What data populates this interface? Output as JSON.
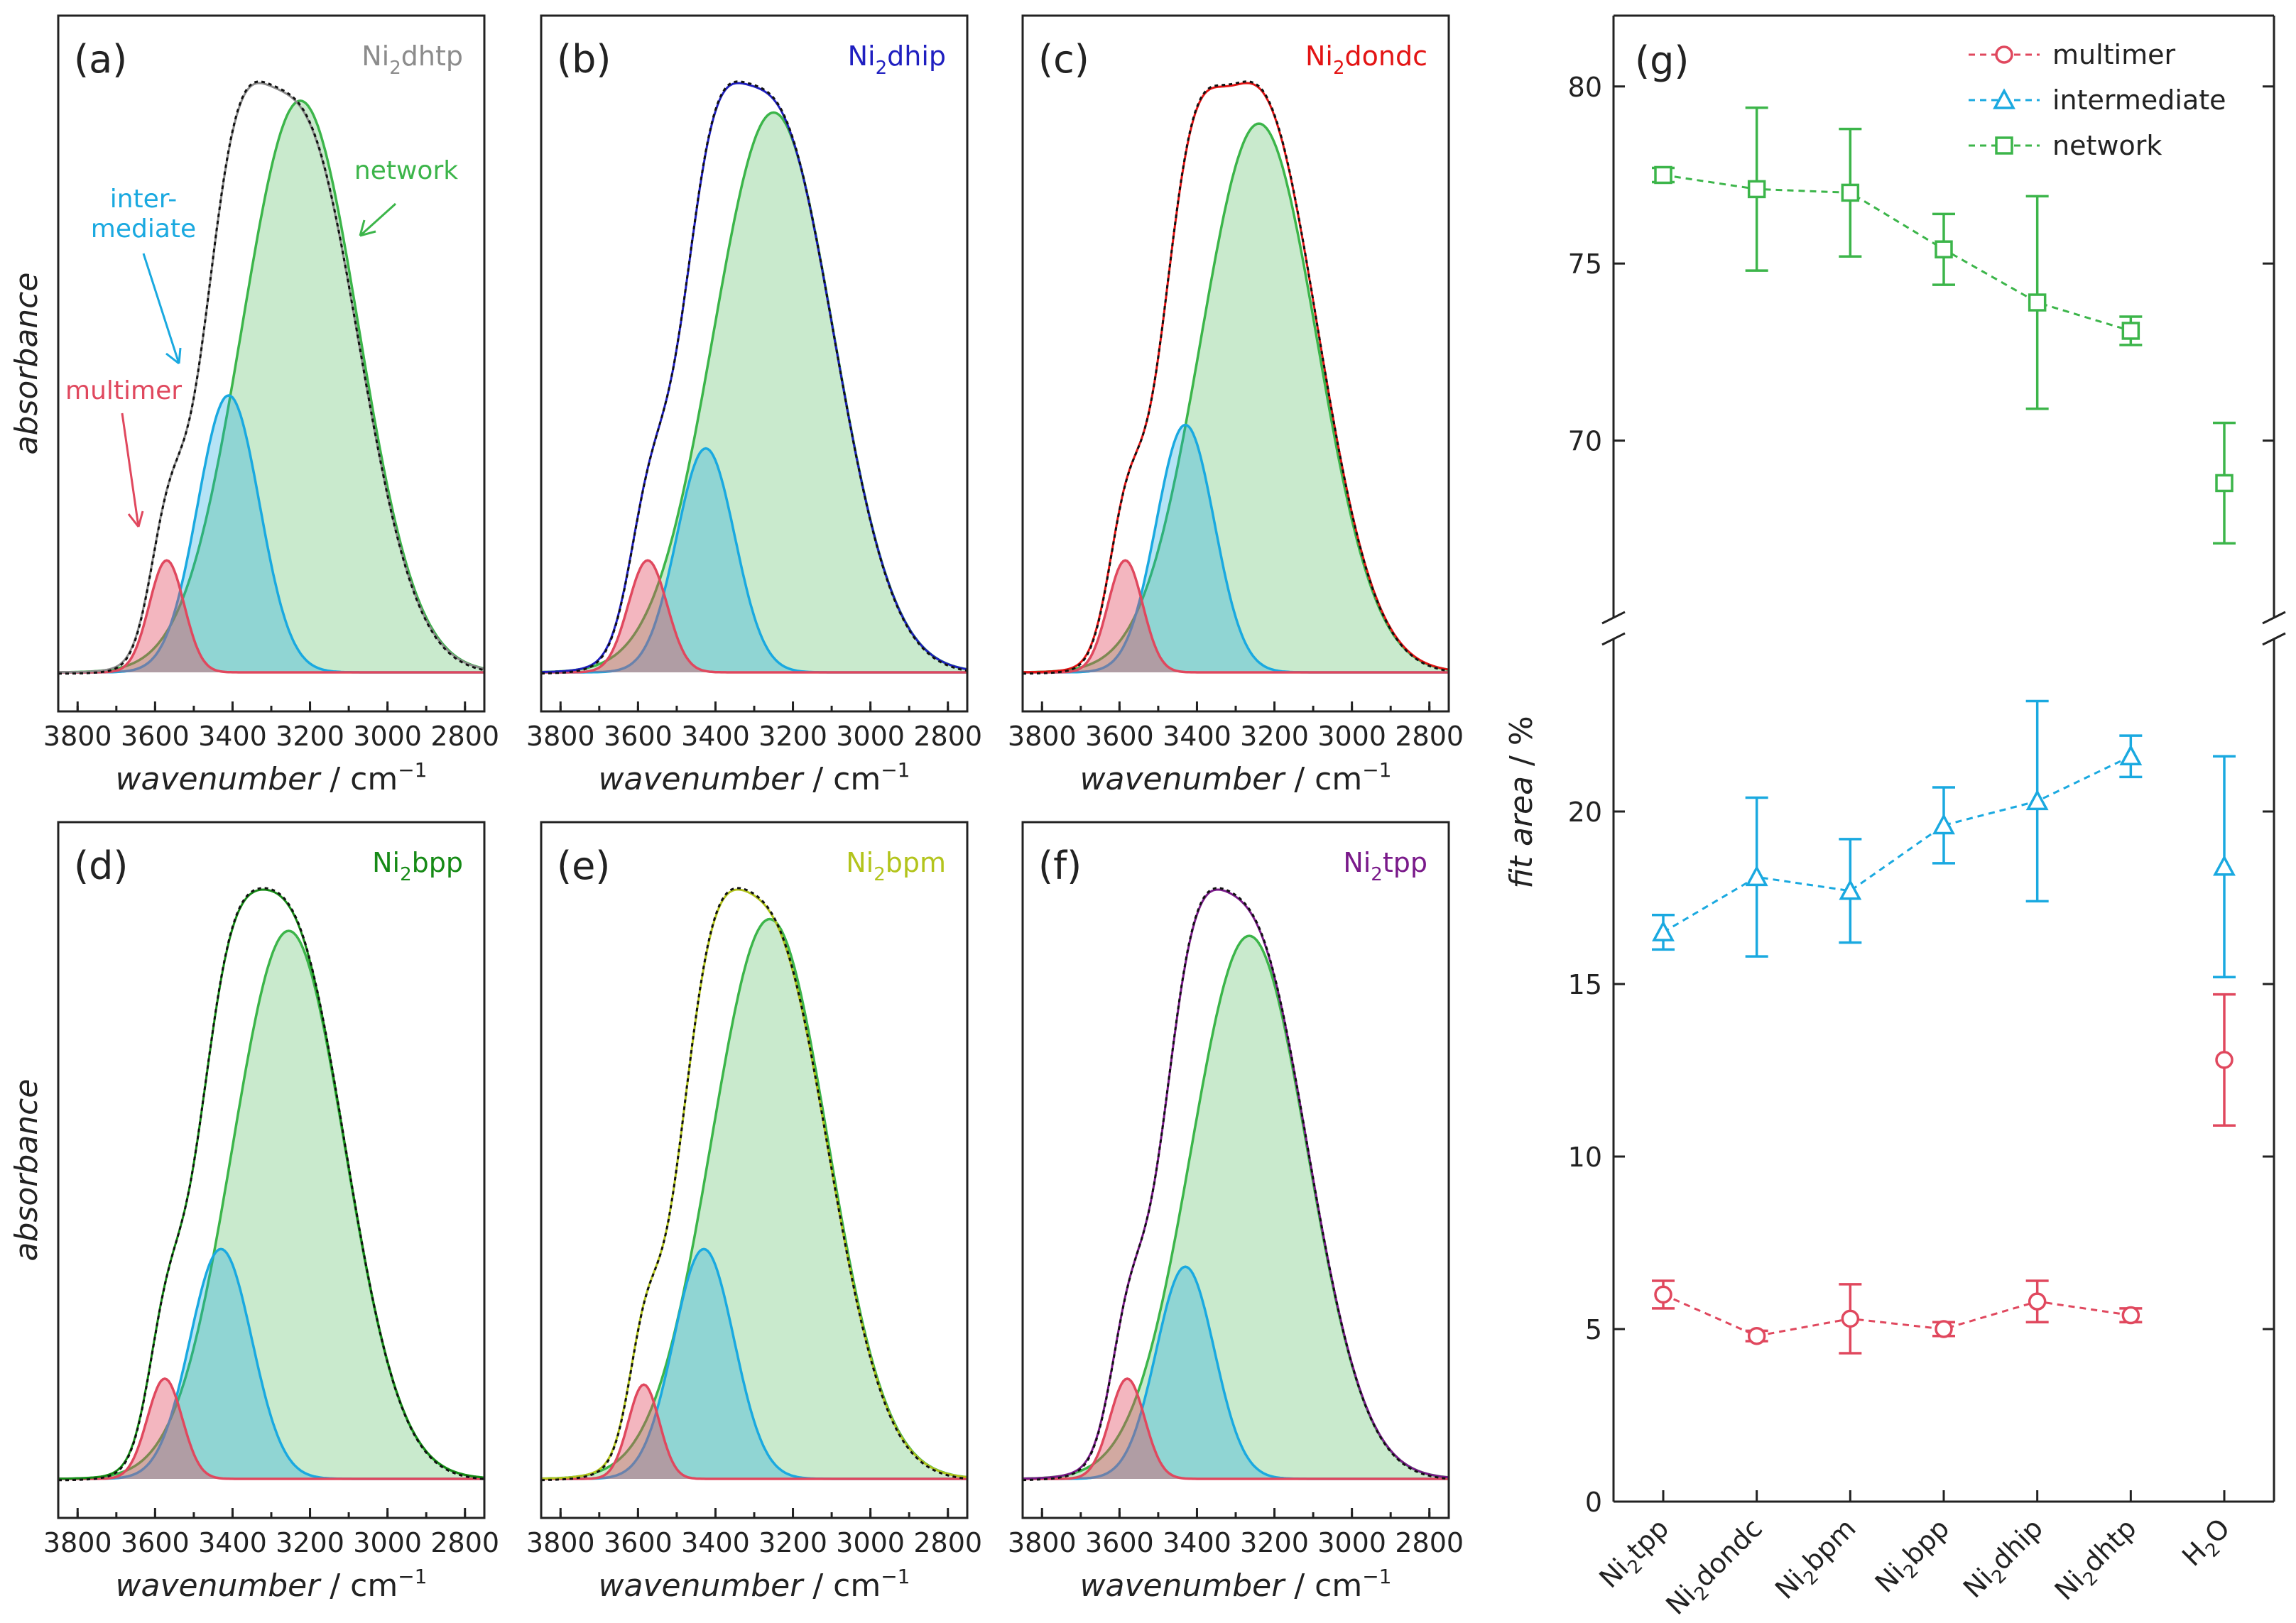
{
  "colors": {
    "multimer": "#e0485e",
    "intermediate": "#1aa9e0",
    "network": "#3cb54a",
    "axis": "#222222",
    "fit": "#111111"
  },
  "spectra": {
    "xlabel_italic": "wavenumber",
    "xlabel_unit": " / cm",
    "xlabel_exp": "−1",
    "ylabel": "absorbance",
    "ticks": [
      "3800",
      "3600",
      "3400",
      "3200",
      "3000",
      "2800"
    ],
    "annotations": {
      "network": "network",
      "inter1": "inter-",
      "inter2": "mediate",
      "multimer": "multimer"
    },
    "panels": [
      {
        "label": "(a)",
        "name_pre": "Ni",
        "name_sub": "2",
        "name_post": "dhtp",
        "name_color": "#8c8c8c"
      },
      {
        "label": "(b)",
        "name_pre": "Ni",
        "name_sub": "2",
        "name_post": "dhip",
        "name_color": "#1f1fc0"
      },
      {
        "label": "(c)",
        "name_pre": "Ni",
        "name_sub": "2",
        "name_post": "dondc",
        "name_color": "#e31414"
      },
      {
        "label": "(d)",
        "name_pre": "Ni",
        "name_sub": "2",
        "name_post": "bpp",
        "name_color": "#168a16"
      },
      {
        "label": "(e)",
        "name_pre": "Ni",
        "name_sub": "2",
        "name_post": "bpm",
        "name_color": "#b3c41c"
      },
      {
        "label": "(f)",
        "name_pre": "Ni",
        "name_sub": "2",
        "name_post": "tpp",
        "name_color": "#7a1a8a"
      }
    ]
  },
  "chart_data": {
    "type": "scatter",
    "panel_label": "(g)",
    "ylabel_italic": "fit area",
    "ylabel_unit": " / %",
    "categories": [
      {
        "pre": "Ni",
        "sub": "2",
        "post": "tpp"
      },
      {
        "pre": "Ni",
        "sub": "2",
        "post": "dondc"
      },
      {
        "pre": "Ni",
        "sub": "2",
        "post": "bpm"
      },
      {
        "pre": "Ni",
        "sub": "2",
        "post": "bpp"
      },
      {
        "pre": "Ni",
        "sub": "2",
        "post": "dhip"
      },
      {
        "pre": "Ni",
        "sub": "2",
        "post": "dhtp"
      },
      {
        "pre": "H",
        "sub": "2",
        "post": "O"
      }
    ],
    "y_lower_ticks": [
      "0",
      "5",
      "10",
      "15",
      "20"
    ],
    "y_upper_ticks": [
      "70",
      "75",
      "80"
    ],
    "ylim_lower": [
      0,
      25
    ],
    "ylim_upper": [
      65,
      82
    ],
    "legend_position": "top-right",
    "series": [
      {
        "name": "multimer",
        "marker": "circle",
        "color": "#e0485e",
        "values": [
          6.0,
          4.8,
          5.3,
          5.0,
          5.8,
          5.4,
          12.8
        ],
        "errors": [
          0.4,
          0.15,
          1.0,
          0.2,
          0.6,
          0.2,
          1.9
        ],
        "connected_points": 6
      },
      {
        "name": "intermediate",
        "marker": "triangle",
        "color": "#1aa9e0",
        "values": [
          16.5,
          18.1,
          17.7,
          19.6,
          20.3,
          21.6,
          18.4
        ],
        "errors": [
          0.5,
          2.3,
          1.5,
          1.1,
          2.9,
          0.6,
          3.2
        ],
        "connected_points": 6
      },
      {
        "name": "network",
        "marker": "square",
        "color": "#3cb54a",
        "values": [
          77.5,
          77.1,
          77.0,
          75.4,
          73.9,
          73.1,
          68.8
        ],
        "errors": [
          0.2,
          2.3,
          1.8,
          1.0,
          3.0,
          0.4,
          1.7
        ],
        "connected_points": 6
      }
    ]
  }
}
